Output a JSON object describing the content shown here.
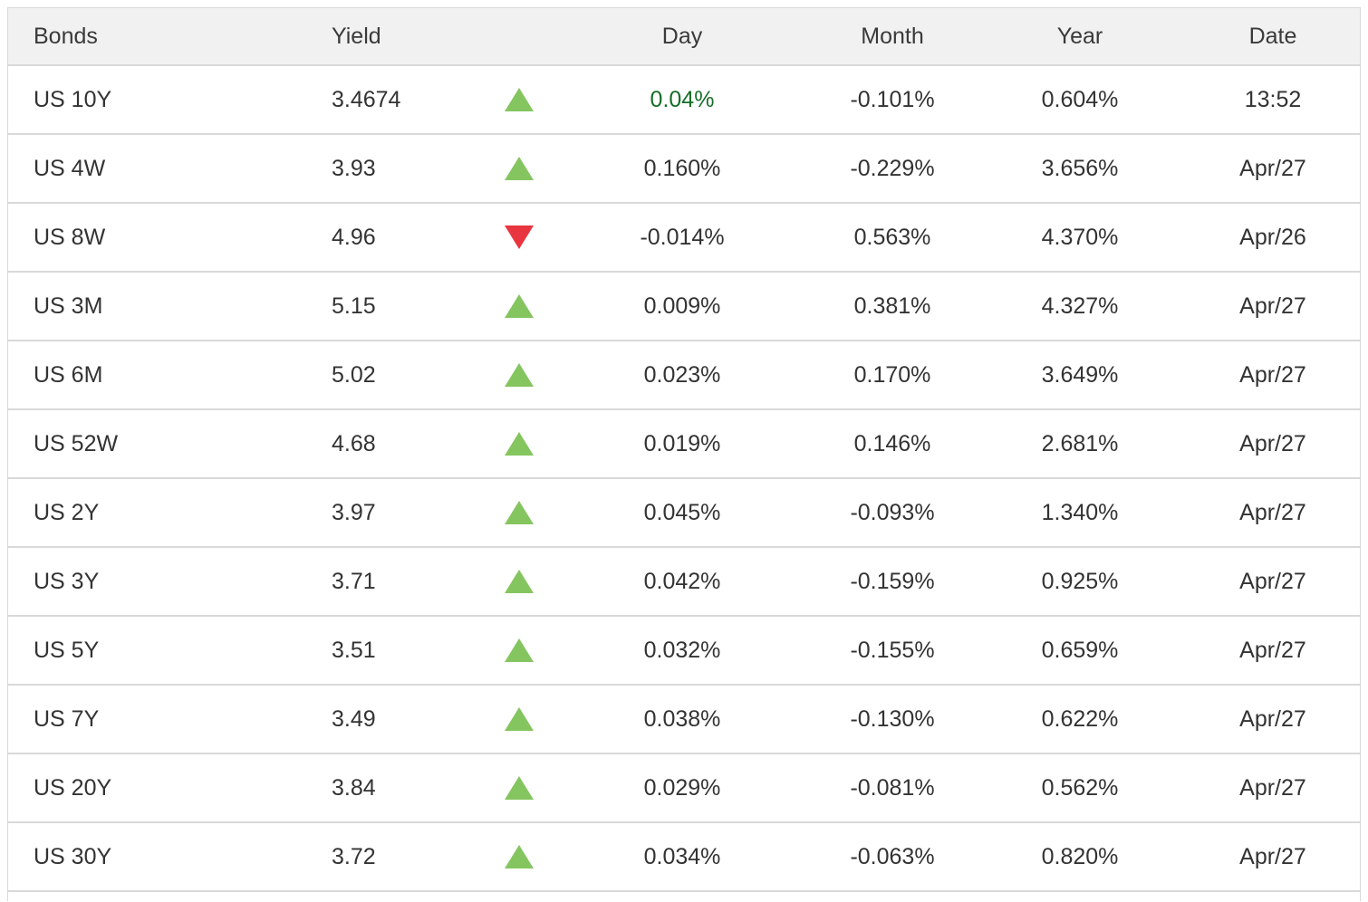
{
  "colors": {
    "up_triangle": "#85c560",
    "down_triangle": "#e8353f",
    "highlight_green_text": "#166e28",
    "header_background": "#f1f1f1",
    "row_border": "#d9d9d9",
    "text": "#333333"
  },
  "table": {
    "header": {
      "bonds": "Bonds",
      "yield": "Yield",
      "day": "Day",
      "month": "Month",
      "year": "Year",
      "date": "Date"
    },
    "rows": [
      {
        "bond": "US 10Y",
        "yield": "3.4674",
        "direction": "up",
        "day": "0.04%",
        "day_highlight": true,
        "month": "-0.101%",
        "year": "0.604%",
        "date": "13:52"
      },
      {
        "bond": "US 4W",
        "yield": "3.93",
        "direction": "up",
        "day": "0.160%",
        "day_highlight": false,
        "month": "-0.229%",
        "year": "3.656%",
        "date": "Apr/27"
      },
      {
        "bond": "US 8W",
        "yield": "4.96",
        "direction": "down",
        "day": "-0.014%",
        "day_highlight": false,
        "month": "0.563%",
        "year": "4.370%",
        "date": "Apr/26"
      },
      {
        "bond": "US 3M",
        "yield": "5.15",
        "direction": "up",
        "day": "0.009%",
        "day_highlight": false,
        "month": "0.381%",
        "year": "4.327%",
        "date": "Apr/27"
      },
      {
        "bond": "US 6M",
        "yield": "5.02",
        "direction": "up",
        "day": "0.023%",
        "day_highlight": false,
        "month": "0.170%",
        "year": "3.649%",
        "date": "Apr/27"
      },
      {
        "bond": "US 52W",
        "yield": "4.68",
        "direction": "up",
        "day": "0.019%",
        "day_highlight": false,
        "month": "0.146%",
        "year": "2.681%",
        "date": "Apr/27"
      },
      {
        "bond": "US 2Y",
        "yield": "3.97",
        "direction": "up",
        "day": "0.045%",
        "day_highlight": false,
        "month": "-0.093%",
        "year": "1.340%",
        "date": "Apr/27"
      },
      {
        "bond": "US 3Y",
        "yield": "3.71",
        "direction": "up",
        "day": "0.042%",
        "day_highlight": false,
        "month": "-0.159%",
        "year": "0.925%",
        "date": "Apr/27"
      },
      {
        "bond": "US 5Y",
        "yield": "3.51",
        "direction": "up",
        "day": "0.032%",
        "day_highlight": false,
        "month": "-0.155%",
        "year": "0.659%",
        "date": "Apr/27"
      },
      {
        "bond": "US 7Y",
        "yield": "3.49",
        "direction": "up",
        "day": "0.038%",
        "day_highlight": false,
        "month": "-0.130%",
        "year": "0.622%",
        "date": "Apr/27"
      },
      {
        "bond": "US 20Y",
        "yield": "3.84",
        "direction": "up",
        "day": "0.029%",
        "day_highlight": false,
        "month": "-0.081%",
        "year": "0.562%",
        "date": "Apr/27"
      },
      {
        "bond": "US 30Y",
        "yield": "3.72",
        "direction": "up",
        "day": "0.034%",
        "day_highlight": false,
        "month": "-0.063%",
        "year": "0.820%",
        "date": "Apr/27"
      }
    ]
  }
}
